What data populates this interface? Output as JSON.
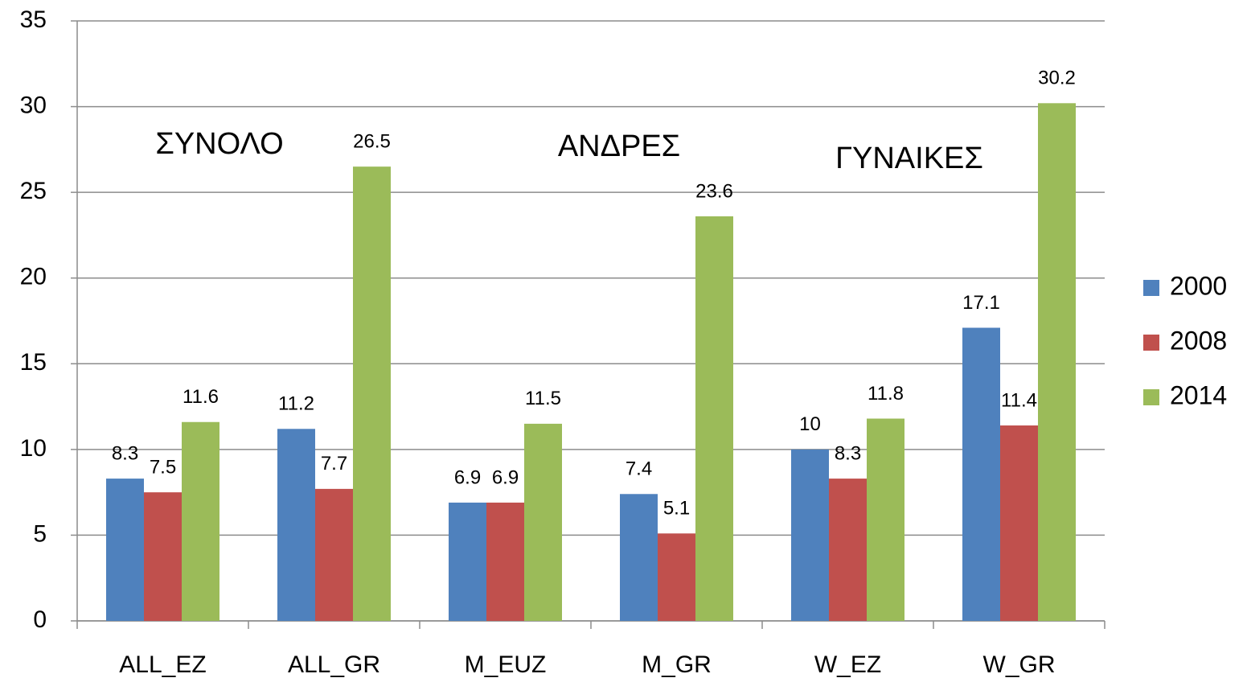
{
  "chart_data": {
    "type": "bar",
    "categories": [
      "ALL_EZ",
      "ALL_GR",
      "M_EUZ",
      "M_GR",
      "W_EZ",
      "W_GR"
    ],
    "series": [
      {
        "name": "2000",
        "color": "#4f81bd",
        "values": [
          8.3,
          11.2,
          6.9,
          7.4,
          10,
          17.1
        ]
      },
      {
        "name": "2008",
        "color": "#c0504d",
        "values": [
          7.5,
          7.7,
          6.9,
          5.1,
          8.3,
          11.4
        ]
      },
      {
        "name": "2014",
        "color": "#9bbb59",
        "values": [
          11.6,
          26.5,
          11.5,
          23.6,
          11.8,
          30.2
        ]
      }
    ],
    "annotations": [
      "ΣΥΝΟΛΟ",
      "ΑΝΔΡΕΣ",
      "ΓΥΝΑΙΚΕΣ"
    ],
    "ylim": [
      0,
      35
    ],
    "yticks": [
      0,
      5,
      10,
      15,
      20,
      25,
      30,
      35
    ],
    "grid": true,
    "legend": "right"
  }
}
